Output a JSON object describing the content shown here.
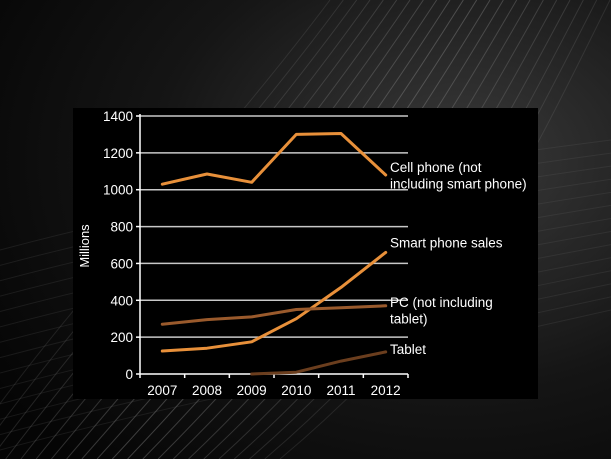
{
  "chart_data": {
    "type": "line",
    "ylabel": "Millions",
    "ylim": [
      0,
      1400
    ],
    "yticks": [
      "0",
      "200",
      "400",
      "600",
      "800",
      "1000",
      "1200",
      "1400"
    ],
    "categories": [
      "2007",
      "2008",
      "2009",
      "2010",
      "2011",
      "2012"
    ],
    "grid": true,
    "series": [
      {
        "label_lines": [
          "Cell phone (not",
          "including smart phone)"
        ],
        "color": "#E8903A",
        "values": [
          1030,
          1085,
          1040,
          1300,
          1305,
          1080
        ]
      },
      {
        "label_lines": [
          "Smart phone sales"
        ],
        "color": "#E8903A",
        "values": [
          125,
          140,
          175,
          300,
          470,
          660
        ]
      },
      {
        "label_lines": [
          "PC (not including",
          "tablet)"
        ],
        "color": "#9A5A2C",
        "values": [
          270,
          295,
          310,
          350,
          360,
          370
        ]
      },
      {
        "label_lines": [
          "Tablet"
        ],
        "color": "#6B3E1E",
        "values": [
          null,
          null,
          0,
          10,
          70,
          120
        ]
      }
    ]
  },
  "colors": {
    "panel": "#000000",
    "grid": "#c8c8c8",
    "axis": "#ffffff",
    "text": "#ffffff"
  }
}
